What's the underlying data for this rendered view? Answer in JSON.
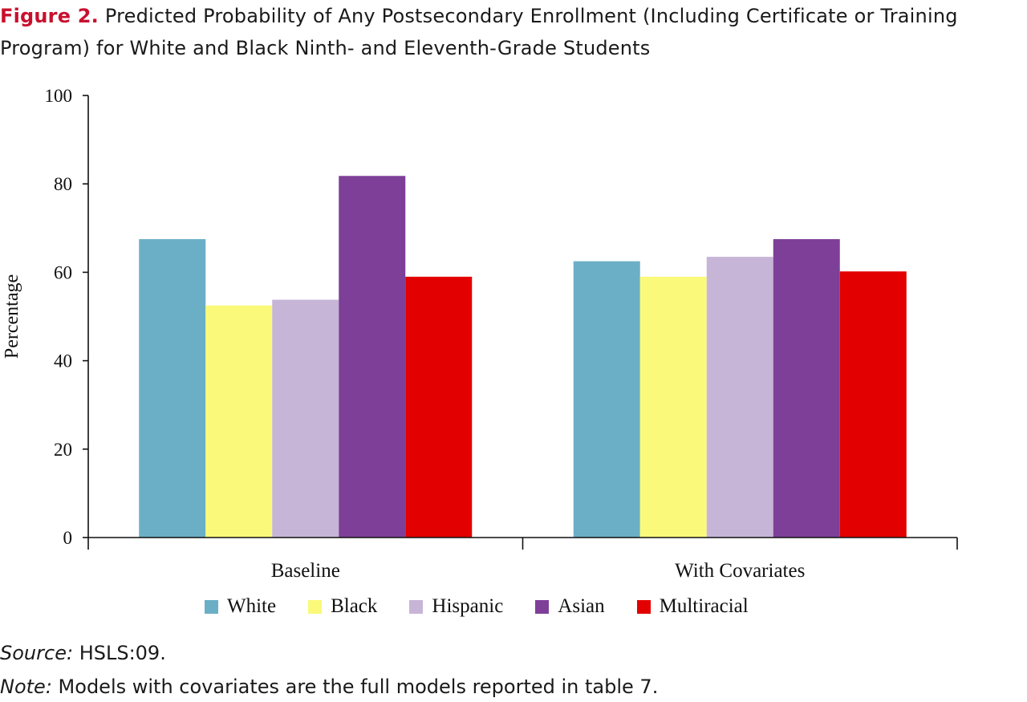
{
  "header": {
    "figure_label": "Figure 2.",
    "title_line1": "Predicted Probability of Any Postsecondary Enrollment (Including Certificate or Training",
    "title_line2": "Program) for White and Black Ninth- and Eleventh-Grade Students"
  },
  "chart_data": {
    "type": "bar",
    "categories": [
      "Baseline",
      "With Covariates"
    ],
    "series": [
      {
        "name": "White",
        "color": "#6aafc6",
        "values": [
          67.5,
          62.5
        ]
      },
      {
        "name": "Black",
        "color": "#faf97a",
        "values": [
          52.5,
          59.0
        ]
      },
      {
        "name": "Hispanic",
        "color": "#c7b5d7",
        "values": [
          53.8,
          63.5
        ]
      },
      {
        "name": "Asian",
        "color": "#7e3f98",
        "values": [
          81.8,
          67.5
        ]
      },
      {
        "name": "Multiracial",
        "color": "#e30000",
        "values": [
          59.0,
          60.2
        ]
      }
    ],
    "ylabel": "Percentage",
    "ylim": [
      0,
      100
    ],
    "yticks": [
      0,
      20,
      40,
      60,
      80,
      100
    ],
    "grid": false,
    "legend": "bottom"
  },
  "footer": {
    "source_lead": "Source:",
    "source_text": "HSLS:09.",
    "note_lead": "Note:",
    "note_text": "Models with covariates are the full models reported in table 7."
  }
}
